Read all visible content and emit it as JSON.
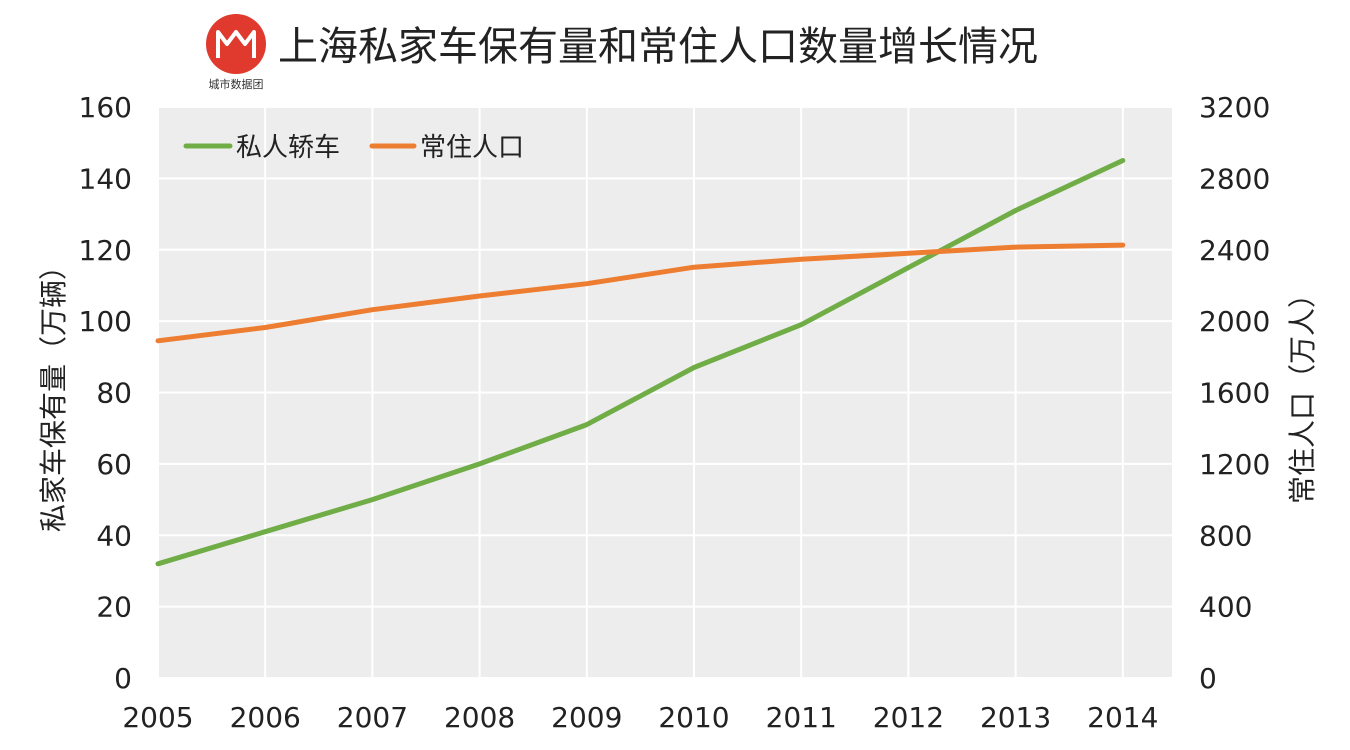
{
  "chart_data": {
    "type": "line",
    "title": "上海私家车保有量和常住人口数量增长情况",
    "logo_caption": "城市数据团",
    "categories": [
      "2005",
      "2006",
      "2007",
      "2008",
      "2009",
      "2010",
      "2011",
      "2012",
      "2013",
      "2014"
    ],
    "y_left": {
      "label": "私家车保有量（万辆）",
      "ylim": [
        0,
        160
      ],
      "ticks": [
        0,
        20,
        40,
        60,
        80,
        100,
        120,
        140,
        160
      ]
    },
    "y_right": {
      "label": "常住人口（万人）",
      "ylim": [
        0,
        3200
      ],
      "ticks": [
        0,
        400,
        800,
        1200,
        1600,
        2000,
        2400,
        2800,
        3200
      ]
    },
    "series": [
      {
        "name": "私人轿车",
        "axis": "left",
        "color": "#70AD47",
        "values": [
          32,
          41,
          50,
          60,
          71,
          87,
          99,
          115,
          131,
          145
        ]
      },
      {
        "name": "常住人口",
        "axis": "right",
        "color": "#ED7D31",
        "values": [
          1890,
          1964,
          2064,
          2141,
          2210,
          2302,
          2347,
          2380,
          2415,
          2426
        ]
      }
    ],
    "grid": true,
    "legend": "top-left",
    "colors": {
      "plot_bg": "#EDEDED",
      "grid": "#FFFFFF",
      "logo": "#E03A2E"
    }
  }
}
